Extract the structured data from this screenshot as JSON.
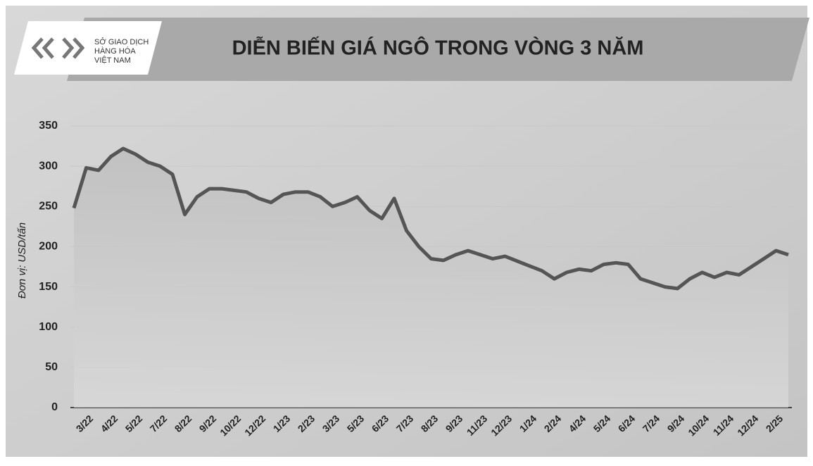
{
  "chart_data": {
    "type": "line",
    "title": "DIỄN BIẾN GIÁ NGÔ TRONG VÒNG 3 NĂM",
    "logo_text": [
      "SỞ GIAO DỊCH",
      "HÀNG HÓA",
      "VIỆT NAM"
    ],
    "y_label": "Đơn vị: USD/tấn",
    "categories": [
      null,
      "3/22",
      null,
      "4/22",
      null,
      "5/22",
      null,
      "7/22",
      null,
      "8/22",
      null,
      "9/22",
      null,
      "10/22",
      null,
      "12/22",
      null,
      "1/23",
      null,
      "2/23",
      null,
      "3/23",
      null,
      "5/23",
      null,
      "6/23",
      null,
      "7/23",
      null,
      "8/23",
      null,
      "9/23",
      null,
      "11/23",
      null,
      "12/23",
      null,
      "1/24",
      null,
      "2/24",
      null,
      "4/24",
      null,
      "5/24",
      null,
      "6/24",
      null,
      "7/24",
      null,
      "9/24",
      null,
      "10/24",
      null,
      "11/24",
      null,
      "12/24",
      null,
      "2/25",
      null
    ],
    "series": [
      {
        "color": "#555555",
        "values": [
          248,
          298,
          295,
          312,
          322,
          315,
          305,
          300,
          290,
          240,
          262,
          272,
          272,
          270,
          268,
          260,
          255,
          265,
          268,
          268,
          262,
          250,
          255,
          262,
          245,
          235,
          260,
          220,
          200,
          185,
          183,
          190,
          195,
          190,
          185,
          188,
          182,
          176,
          170,
          160,
          168,
          172,
          170,
          178,
          180,
          178,
          160,
          155,
          150,
          148,
          160,
          168,
          162,
          168,
          165,
          175,
          185,
          195,
          190
        ]
      }
    ],
    "ylim": [
      0,
      350
    ],
    "yticks": [
      0,
      50,
      100,
      150,
      200,
      250,
      300,
      350
    ],
    "grid": true
  }
}
